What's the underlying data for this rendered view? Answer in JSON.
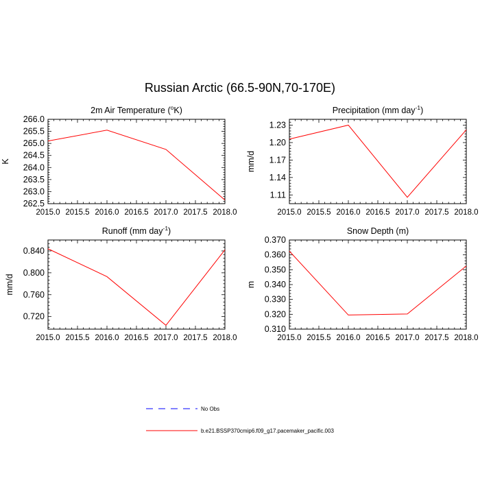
{
  "title": "Russian Arctic (66.5-90N,70-170E)",
  "colors": {
    "model": "#ff0000",
    "obs": "#0000ff",
    "axis": "#000000"
  },
  "legend": [
    {
      "label": "No Obs",
      "style": "dashed",
      "color": "#0000ff"
    },
    {
      "label": "b.e21.BSSP370cmip6.f09_g17.pacemaker_pacific.003",
      "style": "solid",
      "color": "#ff0000"
    }
  ],
  "chart_data": [
    {
      "type": "line",
      "title": "2m Air Temperature (",
      "title_sup": "o",
      "title_tail": "K)",
      "ylabel": "K",
      "xlim": [
        2015.0,
        2018.0
      ],
      "ylim": [
        262.5,
        266.0
      ],
      "xticks": [
        "2015.0",
        "2015.5",
        "2016.0",
        "2016.5",
        "2017.0",
        "2017.5",
        "2018.0"
      ],
      "yticks": [
        "262.5",
        "263.0",
        "263.5",
        "264.0",
        "264.5",
        "265.0",
        "265.5",
        "266.0"
      ],
      "x": [
        2015,
        2016,
        2017,
        2018
      ],
      "series": [
        {
          "name": "b.e21.BSSP370cmip6.f09_g17.pacemaker_pacific.003",
          "values": [
            265.1,
            265.55,
            264.75,
            262.65
          ]
        }
      ]
    },
    {
      "type": "line",
      "title": "Precipitation (mm day",
      "title_sup": "-1",
      "title_tail": ")",
      "ylabel": "mm/d",
      "xlim": [
        2015.0,
        2018.0
      ],
      "ylim": [
        1.095,
        1.24
      ],
      "xticks": [
        "2015.0",
        "2015.5",
        "2016.0",
        "2016.5",
        "2017.0",
        "2017.5",
        "2018.0"
      ],
      "yticks": [
        "1.11",
        "1.14",
        "1.17",
        "1.20",
        "1.23"
      ],
      "x": [
        2015,
        2016,
        2017,
        2018
      ],
      "series": [
        {
          "name": "b.e21.BSSP370cmip6.f09_g17.pacemaker_pacific.003",
          "values": [
            1.206,
            1.23,
            1.106,
            1.222
          ]
        }
      ]
    },
    {
      "type": "line",
      "title": "Runoff (mm day",
      "title_sup": "-1",
      "title_tail": ")",
      "ylabel": "mm/d",
      "xlim": [
        2015.0,
        2018.0
      ],
      "ylim": [
        0.697,
        0.86
      ],
      "xticks": [
        "2015.0",
        "2015.5",
        "2016.0",
        "2016.5",
        "2017.0",
        "2017.5",
        "2018.0"
      ],
      "yticks": [
        "0.720",
        "0.760",
        "0.800",
        "0.840"
      ],
      "x": [
        2015,
        2016,
        2017,
        2018
      ],
      "series": [
        {
          "name": "b.e21.BSSP370cmip6.f09_g17.pacemaker_pacific.003",
          "values": [
            0.844,
            0.793,
            0.704,
            0.842
          ]
        }
      ]
    },
    {
      "type": "line",
      "title": "Snow Depth (m)",
      "title_sup": "",
      "title_tail": "",
      "ylabel": "m",
      "xlim": [
        2015.0,
        2018.0
      ],
      "ylim": [
        0.31,
        0.37
      ],
      "xticks": [
        "2015.0",
        "2015.5",
        "2016.0",
        "2016.5",
        "2017.0",
        "2017.5",
        "2018.0"
      ],
      "yticks": [
        "0.310",
        "0.320",
        "0.330",
        "0.340",
        "0.350",
        "0.360",
        "0.370"
      ],
      "x": [
        2015,
        2016,
        2017,
        2018
      ],
      "series": [
        {
          "name": "b.e21.BSSP370cmip6.f09_g17.pacemaker_pacific.003",
          "values": [
            0.3625,
            0.3195,
            0.3202,
            0.3525
          ]
        }
      ]
    }
  ]
}
